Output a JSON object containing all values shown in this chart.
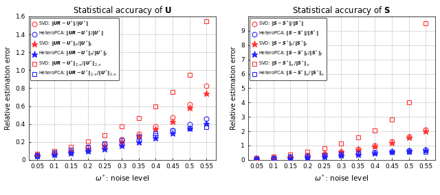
{
  "x": [
    0.05,
    0.1,
    0.15,
    0.2,
    0.25,
    0.3,
    0.35,
    0.4,
    0.45,
    0.5,
    0.55
  ],
  "panel_a": {
    "title_start": "Statistical accuracy of ",
    "title_bold": "U",
    "xlabel": "$\\omega^*$: noise level",
    "ylabel": "Relative estimation error",
    "ylim": [
      0,
      1.6
    ],
    "yticks": [
      0.0,
      0.2,
      0.4,
      0.6,
      0.8,
      1.0,
      1.2,
      1.4,
      1.6
    ],
    "xticks": [
      0.05,
      0.1,
      0.15,
      0.2,
      0.25,
      0.3,
      0.35,
      0.4,
      0.45,
      0.5,
      0.55
    ],
    "xtick_labels": [
      "0.05",
      "0.1",
      "0.15",
      "0.2",
      "0.25",
      "0.3",
      "0.35",
      "0.4",
      "0.45",
      "0.5",
      "0.55"
    ],
    "svd_op": [
      0.055,
      0.075,
      0.102,
      0.135,
      0.178,
      0.228,
      0.293,
      0.375,
      0.472,
      0.62,
      0.825
    ],
    "het_op": [
      0.047,
      0.063,
      0.083,
      0.107,
      0.138,
      0.175,
      0.22,
      0.272,
      0.332,
      0.395,
      0.46
    ],
    "svd_frob": [
      0.05,
      0.07,
      0.094,
      0.123,
      0.163,
      0.208,
      0.266,
      0.34,
      0.43,
      0.58,
      0.74
    ],
    "het_frob": [
      0.043,
      0.058,
      0.076,
      0.097,
      0.125,
      0.158,
      0.2,
      0.247,
      0.298,
      0.352,
      0.408
    ],
    "svd_2inf": [
      0.068,
      0.102,
      0.145,
      0.203,
      0.278,
      0.375,
      0.468,
      0.595,
      0.76,
      0.945,
      1.545
    ],
    "het_2inf": [
      0.056,
      0.082,
      0.112,
      0.145,
      0.185,
      0.222,
      0.262,
      0.298,
      0.328,
      0.35,
      0.368
    ],
    "legend": [
      "SVD: $\\|\\boldsymbol{U}\\boldsymbol{R}-\\boldsymbol{U}^*\\|/\\|\\boldsymbol{U}^*\\|$",
      "HeteroPCA: $\\|\\boldsymbol{U}\\boldsymbol{R}-\\boldsymbol{U}^*\\|/\\|\\boldsymbol{U}^*\\|$",
      "SVD: $\\|\\boldsymbol{U}\\boldsymbol{R}-\\boldsymbol{U}^*\\|_{\\rm F}/\\|\\boldsymbol{U}^*\\|_{\\rm F}$",
      "HeteroPCA: $\\|\\boldsymbol{U}\\boldsymbol{R}-\\boldsymbol{U}^*\\|_{\\rm F}/\\|\\boldsymbol{U}^*\\|_{\\rm F}$",
      "SVD: $\\|\\boldsymbol{U}\\boldsymbol{R}-\\boldsymbol{U}^*\\|_{2,\\infty}/\\|\\boldsymbol{U}^*\\|_{2,\\infty}$",
      "HeteroPCA: $\\|\\boldsymbol{U}\\boldsymbol{R}-\\boldsymbol{U}^*\\|_{2,\\infty}/\\|\\boldsymbol{U}^*\\|_{2,\\infty}$"
    ]
  },
  "panel_b": {
    "title_start": "Statistical accuracy of ",
    "title_bold": "S",
    "xlabel": "$\\omega^*$: noise level",
    "ylabel": "Relative estimation error",
    "ylim": [
      0,
      10
    ],
    "yticks": [
      0,
      1,
      2,
      3,
      4,
      5,
      6,
      7,
      8,
      9,
      10
    ],
    "ytick_labels": [
      "0",
      "1",
      "2",
      "3",
      "4",
      "5",
      "6",
      "7",
      "8",
      "9",
      ""
    ],
    "xticks": [
      0.05,
      0.1,
      0.15,
      0.2,
      0.25,
      0.3,
      0.35,
      0.4,
      0.45,
      0.5,
      0.55
    ],
    "xtick_labels": [
      "0.05",
      "0.1",
      "0.15",
      "0.2",
      "0.25",
      "0.3",
      "0.35",
      "0.4",
      "0.45",
      "0.5",
      "0.55"
    ],
    "svd_op": [
      0.1,
      0.155,
      0.225,
      0.315,
      0.435,
      0.585,
      0.77,
      0.995,
      1.27,
      1.63,
      2.1
    ],
    "het_op": [
      0.08,
      0.112,
      0.152,
      0.205,
      0.265,
      0.335,
      0.415,
      0.505,
      0.59,
      0.66,
      0.73
    ],
    "svd_frob": [
      0.09,
      0.135,
      0.205,
      0.288,
      0.405,
      0.545,
      0.72,
      0.93,
      1.195,
      1.565,
      2.02
    ],
    "het_frob": [
      0.07,
      0.1,
      0.135,
      0.185,
      0.245,
      0.31,
      0.38,
      0.468,
      0.548,
      0.612,
      0.678
    ],
    "svd_inf": [
      0.145,
      0.225,
      0.365,
      0.56,
      0.83,
      1.12,
      1.58,
      2.05,
      2.8,
      4.0,
      9.5
    ],
    "het_inf": [
      0.1,
      0.152,
      0.222,
      0.285,
      0.345,
      0.405,
      0.462,
      0.505,
      0.545,
      0.558,
      0.565
    ],
    "legend": [
      "SVD: $\\|\\boldsymbol{S}-\\boldsymbol{S}^*\\|/\\|\\boldsymbol{S}^*\\|$",
      "HeteroPCA: $\\|\\boldsymbol{S}-\\boldsymbol{S}^*\\|/\\|\\boldsymbol{S}^*\\|$",
      "SVD: $\\|\\boldsymbol{S}-\\boldsymbol{S}^*\\|_{\\rm F}/\\|\\boldsymbol{S}^*\\|_{\\rm F}$",
      "HeteroPCA: $\\|\\boldsymbol{S}-\\boldsymbol{S}^*\\|_{\\rm F}/\\|\\boldsymbol{S}^*\\|_{\\rm F}$",
      "SVD: $\\|\\boldsymbol{S}-\\boldsymbol{S}^*\\|_{\\infty}/\\|\\boldsymbol{S}^*\\|_{\\infty}$",
      "HeteroPCA: $\\|\\boldsymbol{S}-\\boldsymbol{S}^*\\|_{\\infty}/\\|\\boldsymbol{S}^*\\|_{\\infty}$"
    ]
  },
  "colors": {
    "red": "#FF3333",
    "blue": "#2222FF"
  }
}
